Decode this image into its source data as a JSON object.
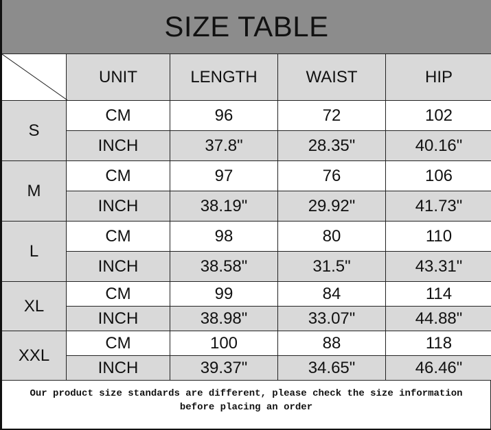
{
  "title": "SIZE TABLE",
  "headers": [
    "UNIT",
    "LENGTH",
    "WAIST",
    "HIP"
  ],
  "sizes": [
    {
      "size": "S",
      "rows": [
        [
          "CM",
          "96",
          "72",
          "102"
        ],
        [
          "INCH",
          "37.8\"",
          "28.35\"",
          "40.16\""
        ]
      ]
    },
    {
      "size": "M",
      "rows": [
        [
          "CM",
          "97",
          "76",
          "106"
        ],
        [
          "INCH",
          "38.19\"",
          "29.92\"",
          "41.73\""
        ]
      ]
    },
    {
      "size": "L",
      "rows": [
        [
          "CM",
          "98",
          "80",
          "110"
        ],
        [
          "INCH",
          "38.58\"",
          "31.5\"",
          "43.31\""
        ]
      ]
    },
    {
      "size": "XL",
      "rows": [
        [
          "CM",
          "99",
          "84",
          "114"
        ],
        [
          "INCH",
          "38.98\"",
          "33.07\"",
          "44.88\""
        ]
      ]
    },
    {
      "size": "XXL",
      "rows": [
        [
          "CM",
          "100",
          "88",
          "118"
        ],
        [
          "INCH",
          "39.37\"",
          "34.65\"",
          "46.46\""
        ]
      ]
    }
  ],
  "note_line1": "Our product size standards are different, please check the size information",
  "note_line2": "before placing an order",
  "colors": {
    "title_bg": "#8c8c8c",
    "cell_gray": "#d9d9d9",
    "cell_white": "#ffffff"
  }
}
